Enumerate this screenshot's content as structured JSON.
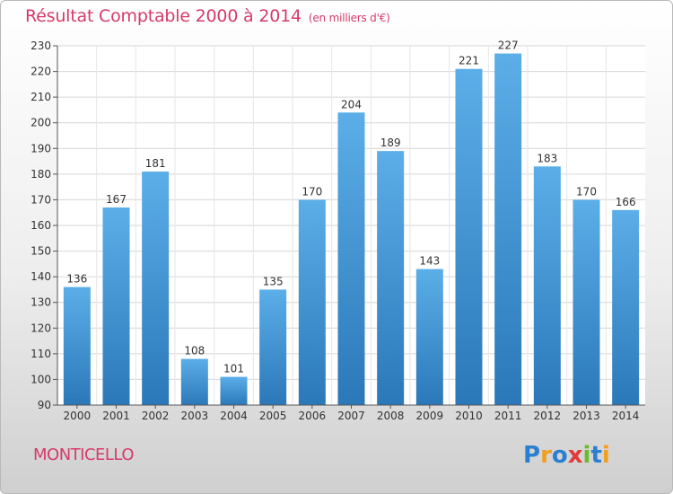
{
  "title": "Résultat Comptable 2000 à 2014",
  "subtitle": "(en milliers d'€)",
  "location": "MONTICELLO",
  "logo": {
    "letters": [
      "P",
      "r",
      "o",
      "x",
      "i",
      "t",
      "i"
    ],
    "colors": [
      "#2a7fd1",
      "#f0a01e",
      "#2a7fd1",
      "#e23b3b",
      "#6cba2f",
      "#2a7fd1",
      "#f0a01e"
    ]
  },
  "chart_data": {
    "type": "bar",
    "title": "Résultat Comptable 2000 à 2014",
    "subtitle": "(en milliers d'€)",
    "xlabel": "",
    "ylabel": "",
    "ylim": [
      90,
      230
    ],
    "yticks": [
      90,
      100,
      110,
      120,
      130,
      140,
      150,
      160,
      170,
      180,
      190,
      200,
      210,
      220,
      230
    ],
    "grid": true,
    "categories": [
      "2000",
      "2001",
      "2002",
      "2003",
      "2004",
      "2005",
      "2006",
      "2007",
      "2008",
      "2009",
      "2010",
      "2011",
      "2012",
      "2013",
      "2014"
    ],
    "values": [
      136,
      167,
      181,
      108,
      101,
      135,
      170,
      204,
      189,
      143,
      221,
      227,
      183,
      170,
      166
    ],
    "bar_color_top": "#5baee8",
    "bar_color_bottom": "#2b78b9"
  }
}
